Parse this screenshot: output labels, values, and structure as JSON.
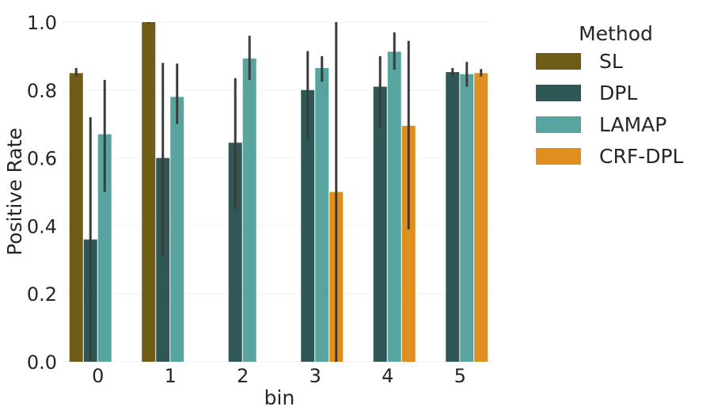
{
  "chart_data": {
    "type": "bar",
    "xlabel": "bin",
    "ylabel": "Positive Rate",
    "categories": [
      "0",
      "1",
      "2",
      "3",
      "4",
      "5"
    ],
    "ylim": [
      0,
      1.0
    ],
    "yticks": [
      "0.0",
      "0.2",
      "0.4",
      "0.6",
      "0.8",
      "1.0"
    ],
    "grid": "horizontal",
    "legend": {
      "title": "Method",
      "placement": "outside-right-top"
    },
    "series": [
      {
        "name": "SL",
        "color": "#6e5c17",
        "values": [
          0.85,
          1.0,
          null,
          null,
          null,
          null
        ],
        "ci": [
          [
            0.84,
            0.865
          ],
          [
            0.995,
            1.0
          ],
          null,
          null,
          null,
          null
        ]
      },
      {
        "name": "DPL",
        "color": "#2f5756",
        "values": [
          0.36,
          0.6,
          0.645,
          0.8,
          0.81,
          0.853
        ],
        "ci": [
          [
            0.0,
            0.72
          ],
          [
            0.31,
            0.88
          ],
          [
            0.45,
            0.835
          ],
          [
            0.655,
            0.915
          ],
          [
            0.69,
            0.9
          ],
          [
            0.84,
            0.865
          ]
        ]
      },
      {
        "name": "LAMAP",
        "color": "#58a5a0",
        "values": [
          0.67,
          0.78,
          0.893,
          0.865,
          0.913,
          0.847
        ],
        "ci": [
          [
            0.5,
            0.83
          ],
          [
            0.7,
            0.878
          ],
          [
            0.83,
            0.96
          ],
          [
            0.825,
            0.9
          ],
          [
            0.86,
            0.97
          ],
          [
            0.81,
            0.883
          ]
        ]
      },
      {
        "name": "CRF-DPL",
        "color": "#df8f1f",
        "values": [
          null,
          null,
          null,
          0.5,
          0.695,
          0.85
        ],
        "ci": [
          null,
          null,
          null,
          [
            0.0,
            1.0
          ],
          [
            0.39,
            0.945
          ],
          [
            0.84,
            0.862
          ]
        ]
      }
    ]
  }
}
